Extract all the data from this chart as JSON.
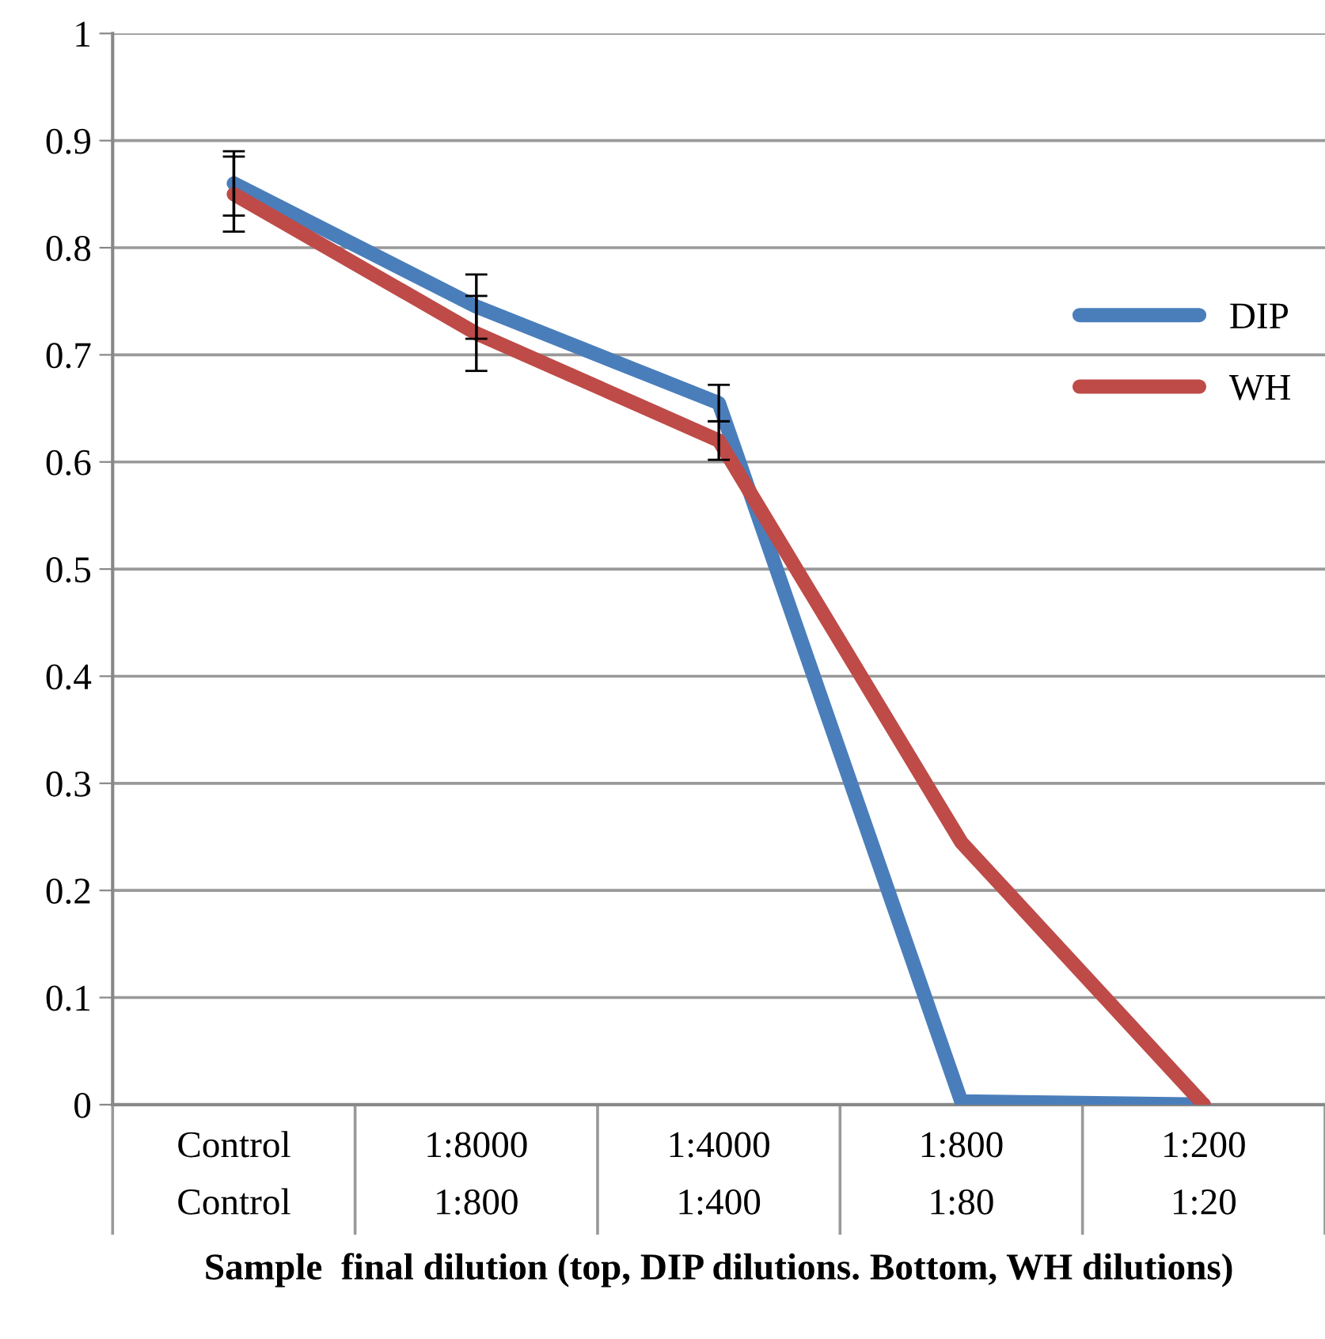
{
  "chart_data": {
    "type": "line",
    "xlabel": "Sample  final dilution (top, DIP dilutions. Bottom, WH dilutions)",
    "categories": [
      "Control\nControl",
      "1:8000\n1:800",
      "1:4000\n1:400",
      "1:800\n1:80",
      "1:200\n1:20"
    ],
    "series": [
      {
        "name": "DIP",
        "color": "#4a7ebb",
        "values": [
          0.86,
          0.745,
          0.655,
          0.003,
          0.0
        ],
        "errors": [
          0.03,
          0.03,
          0.017,
          null,
          null
        ]
      },
      {
        "name": "WH",
        "color": "#be4b48",
        "values": [
          0.85,
          0.72,
          0.62,
          0.245,
          0.0
        ],
        "errors": [
          0.035,
          0.035,
          0.018,
          null,
          null
        ]
      }
    ],
    "ylim": [
      0,
      1
    ],
    "yticks": [
      0,
      0.1,
      0.2,
      0.3,
      0.4,
      0.5,
      0.6,
      0.7,
      0.8,
      0.9,
      1
    ],
    "grid": "y",
    "legend": "right",
    "marker": "none",
    "line_style": "solid"
  }
}
